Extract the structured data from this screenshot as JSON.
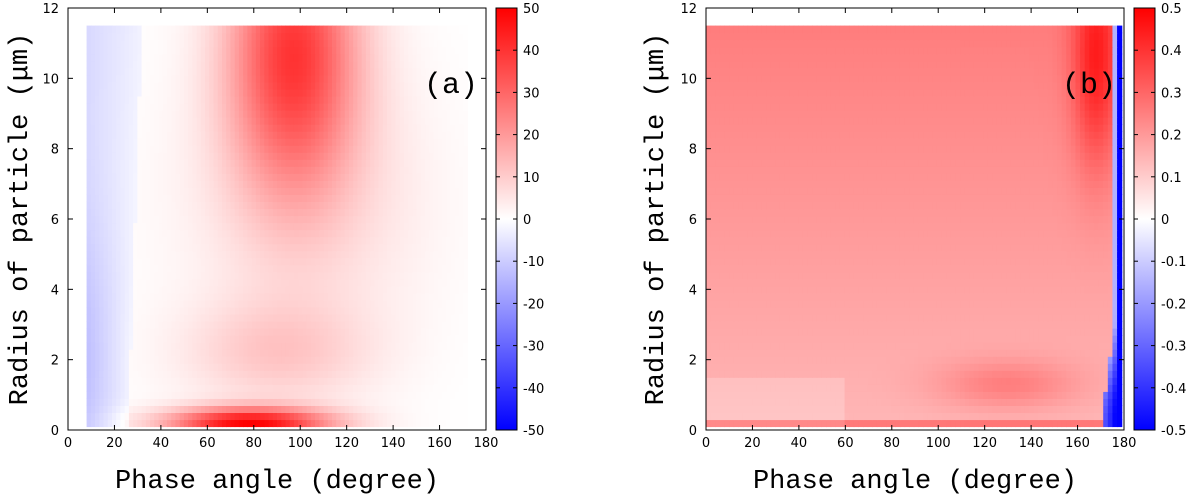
{
  "chart_data": [
    {
      "type": "heatmap",
      "panel_label": "(a)",
      "xlabel": "Phase angle (degree)",
      "ylabel": "Radius of particle (μm)",
      "xlim": [
        0,
        180
      ],
      "ylim": [
        0,
        12
      ],
      "x_ticks": [
        "0",
        "20",
        "40",
        "60",
        "80",
        "100",
        "120",
        "140",
        "160",
        "180"
      ],
      "y_ticks": [
        "0",
        "2",
        "4",
        "6",
        "8",
        "10",
        "12"
      ],
      "colorbar_range": [
        -50,
        50
      ],
      "colorbar_ticks": [
        "-50",
        "-40",
        "-30",
        "-20",
        "-10",
        "0",
        "10",
        "20",
        "30",
        "40",
        "50"
      ],
      "data_x_range": [
        8,
        172
      ],
      "data_y_range": [
        0.1,
        11.5
      ],
      "colors": {
        "low": "#0000ff",
        "mid": "#ffffff",
        "high": "#ff0000"
      }
    },
    {
      "type": "heatmap",
      "panel_label": "(b)",
      "xlabel": "Phase angle (degree)",
      "ylabel": "Radius of particle (μm)",
      "xlim": [
        0,
        180
      ],
      "ylim": [
        0,
        12
      ],
      "x_ticks": [
        "0",
        "20",
        "40",
        "60",
        "80",
        "100",
        "120",
        "140",
        "160",
        "180"
      ],
      "y_ticks": [
        "0",
        "2",
        "4",
        "6",
        "8",
        "10",
        "12"
      ],
      "colorbar_range": [
        -0.5,
        0.5
      ],
      "colorbar_ticks": [
        "-0.5",
        "-0.4",
        "-0.3",
        "-0.2",
        "-0.1",
        "0",
        "0.1",
        "0.2",
        "0.3",
        "0.4",
        "0.5"
      ],
      "data_x_range": [
        0,
        179
      ],
      "data_y_range": [
        0.1,
        11.5
      ],
      "colors": {
        "low": "#0000ff",
        "mid": "#ffffff",
        "high": "#ff0000"
      }
    }
  ]
}
